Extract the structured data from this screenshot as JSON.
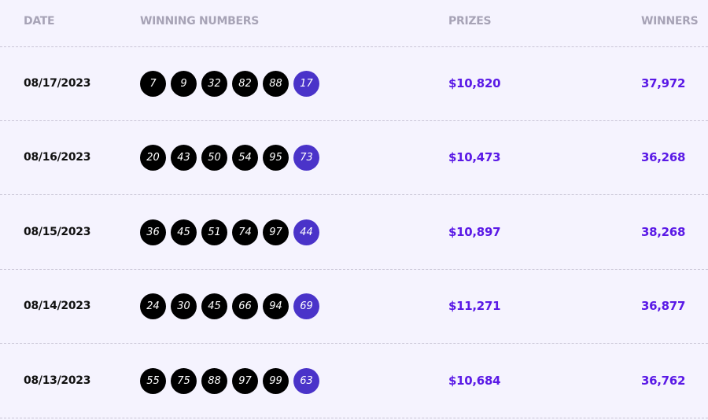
{
  "headers": {
    "date": "DATE",
    "numbers": "WINNING NUMBERS",
    "prizes": "PRIZES",
    "winners": "WINNERS"
  },
  "colors": {
    "ball": "#000000",
    "bonus_ball": "#4a33c9",
    "accent": "#5a19e6"
  },
  "rows": [
    {
      "date": "08/17/2023",
      "numbers": [
        "7",
        "9",
        "32",
        "82",
        "88"
      ],
      "bonus": "17",
      "prize": "$10,820",
      "winners": "37,972"
    },
    {
      "date": "08/16/2023",
      "numbers": [
        "20",
        "43",
        "50",
        "54",
        "95"
      ],
      "bonus": "73",
      "prize": "$10,473",
      "winners": "36,268"
    },
    {
      "date": "08/15/2023",
      "numbers": [
        "36",
        "45",
        "51",
        "74",
        "97"
      ],
      "bonus": "44",
      "prize": "$10,897",
      "winners": "38,268"
    },
    {
      "date": "08/14/2023",
      "numbers": [
        "24",
        "30",
        "45",
        "66",
        "94"
      ],
      "bonus": "69",
      "prize": "$11,271",
      "winners": "36,877"
    },
    {
      "date": "08/13/2023",
      "numbers": [
        "55",
        "75",
        "88",
        "97",
        "99"
      ],
      "bonus": "63",
      "prize": "$10,684",
      "winners": "36,762"
    }
  ]
}
